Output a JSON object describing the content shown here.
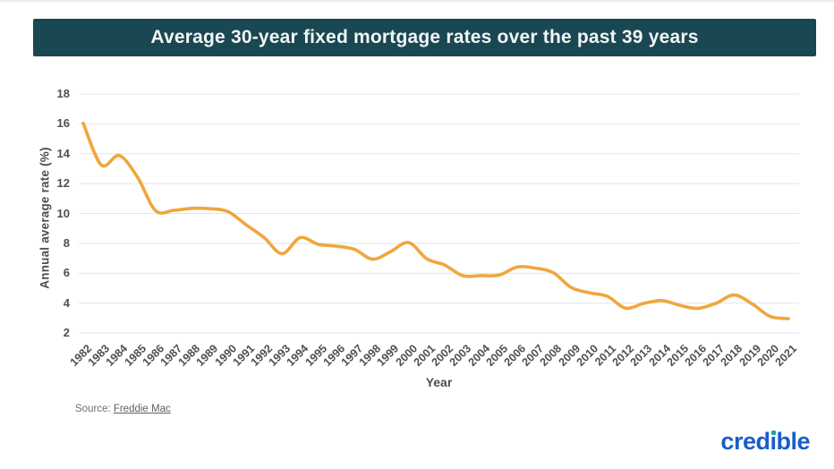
{
  "header": {
    "title": "Average 30-year fixed mortgage rates over the past 39 years",
    "bg_color": "#194752",
    "text_color": "#f3f6f6"
  },
  "chart_data": {
    "type": "line",
    "title": "Average 30-year fixed mortgage rates over the past 39 years",
    "xlabel": "Year",
    "ylabel": "Annual average rate (%)",
    "x": [
      1982,
      1983,
      1984,
      1985,
      1986,
      1987,
      1988,
      1989,
      1990,
      1991,
      1992,
      1993,
      1994,
      1995,
      1996,
      1997,
      1998,
      1999,
      2000,
      2001,
      2002,
      2003,
      2004,
      2005,
      2006,
      2007,
      2008,
      2009,
      2010,
      2011,
      2012,
      2013,
      2014,
      2015,
      2016,
      2017,
      2018,
      2019,
      2020,
      2021
    ],
    "series": [
      {
        "name": "Average 30-year fixed mortgage rate (%)",
        "values": [
          16.04,
          13.24,
          13.88,
          12.43,
          10.19,
          10.21,
          10.34,
          10.32,
          10.13,
          9.25,
          8.39,
          7.31,
          8.38,
          7.93,
          7.81,
          7.6,
          6.94,
          7.44,
          8.05,
          6.97,
          6.54,
          5.83,
          5.84,
          5.87,
          6.41,
          6.34,
          6.03,
          5.04,
          4.69,
          4.45,
          3.66,
          3.98,
          4.17,
          3.85,
          3.65,
          3.99,
          4.54,
          3.94,
          3.1,
          2.96
        ]
      }
    ],
    "yticks": [
      2,
      4,
      6,
      8,
      10,
      12,
      14,
      16,
      18
    ],
    "ylim": [
      2,
      18
    ],
    "grid": true,
    "legend": "none",
    "smooth": true,
    "line_color": "#F0A63C",
    "gridline_color": "#E4E4E4",
    "tick_color": "#4B4F54"
  },
  "footer": {
    "source_prefix": "Source: ",
    "source_link": "Freddie Mac"
  },
  "branding": {
    "logo_left": "cred",
    "logo_i": "ı",
    "logo_right": "ble",
    "logo_color": "#1A5EC9",
    "dot_color": "#0FA7A7"
  }
}
